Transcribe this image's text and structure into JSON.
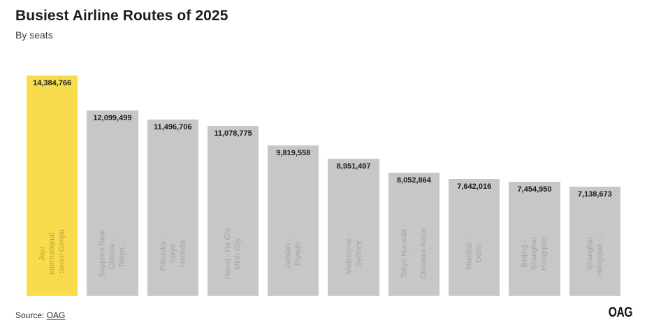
{
  "header": {
    "title": "Busiest Airline Routes of 2025",
    "subtitle": "By seats"
  },
  "footer": {
    "source_prefix": "Source:",
    "source_link": "OAG",
    "logo": "OAG"
  },
  "chart_data": {
    "type": "bar",
    "title": "Busiest Airline Routes of 2025",
    "subtitle": "By seats",
    "orientation": "vertical",
    "grid": false,
    "legend": false,
    "axes_hidden": true,
    "ylim": [
      0,
      14384766
    ],
    "colors": {
      "highlight_bar": "#F8DC4D",
      "highlight_label": "#BCA53C",
      "bar": "#C7C7C7",
      "bar_label": "#A4A4A4",
      "value_label": "#1D1D1D"
    },
    "categories": [
      "Jeju International - Seoul Gimpo",
      "Sapporo New Chitose - Tokyo…",
      "Fukuoka - Tokyo Haneda",
      "Hanoi - Ho Chi Minh City",
      "Jeddah - Riyadh",
      "Melbourne - Sydney",
      "Tokyo Haneda - Okinawa Naha",
      "Mumbai - Delhi",
      "Beijing - Shanghai Hongqiao",
      "Shanghai Hongqiao -…"
    ],
    "values": [
      14384766,
      12099499,
      11496706,
      11078775,
      9819558,
      8951497,
      8052864,
      7642016,
      7454950,
      7138673
    ],
    "bars": [
      {
        "route": "Jeju International\n- Seoul Gimpo",
        "value": 14384766,
        "value_label": "14,384,766",
        "highlight": true
      },
      {
        "route": "Sapporo New\nChitose - Tokyo…",
        "value": 12099499,
        "value_label": "12,099,499",
        "highlight": false
      },
      {
        "route": "Fukuoka - Tokyo\nHaneda",
        "value": 11496706,
        "value_label": "11,496,706",
        "highlight": false
      },
      {
        "route": "Hanoi - Ho Chi\nMinh City",
        "value": 11078775,
        "value_label": "11,078,775",
        "highlight": false
      },
      {
        "route": "Jeddah - Riyadh",
        "value": 9819558,
        "value_label": "9,819,558",
        "highlight": false
      },
      {
        "route": "Melbourne -\nSydney",
        "value": 8951497,
        "value_label": "8,951,497",
        "highlight": false
      },
      {
        "route": "Tokyo Haneda -\nOkinawa Naha",
        "value": 8052864,
        "value_label": "8,052,864",
        "highlight": false
      },
      {
        "route": "Mumbai - Delhi",
        "value": 7642016,
        "value_label": "7,642,016",
        "highlight": false
      },
      {
        "route": "Beijing - Shanghai\nHongqiao",
        "value": 7454950,
        "value_label": "7,454,950",
        "highlight": false
      },
      {
        "route": "Shanghai\nHongqiao -…",
        "value": 7138673,
        "value_label": "7,138,673",
        "highlight": false
      }
    ]
  }
}
